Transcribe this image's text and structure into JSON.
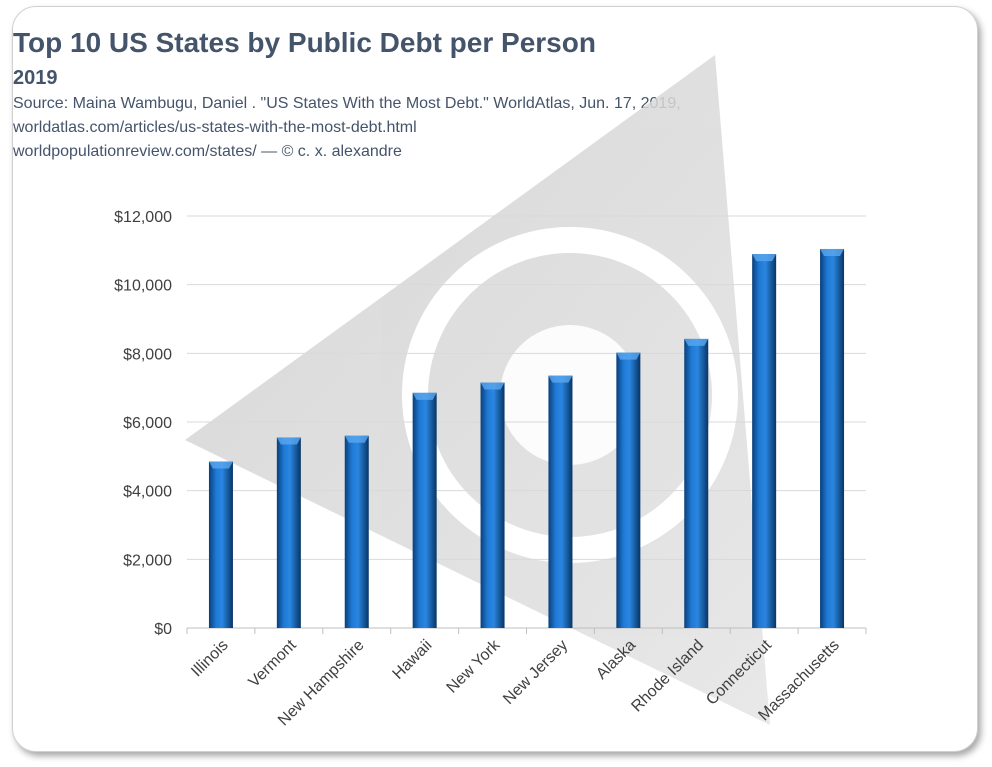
{
  "chart_data": {
    "type": "bar",
    "title": "Top 10 US States by Public Debt per Person",
    "subtitle": "2019",
    "source_lines": [
      "Source: Maina Wambugu, Daniel . \"US States With the Most Debt.\" WorldAtlas, Jun. 17, 2019,",
      "worldatlas.com/articles/us-states-with-the-most-debt.html",
      "worldpopulationreview.com/states/ — © c. x. alexandre"
    ],
    "categories": [
      "Illinois",
      "Vermont",
      "New Hampshire",
      "Hawaii",
      "New York",
      "New Jersey",
      "Alaska",
      "Rhode Island",
      "Connecticut",
      "Massachusetts"
    ],
    "values": [
      4850,
      5550,
      5600,
      6850,
      7150,
      7350,
      8020,
      8420,
      10890,
      11040
    ],
    "ylim": [
      0,
      12000
    ],
    "yticks": [
      "$0",
      "$2,000",
      "$4,000",
      "$6,000",
      "$8,000",
      "$10,000",
      "$12,000"
    ],
    "grid": true,
    "bar_color": "#0b5db0",
    "xlabel": "",
    "ylabel": ""
  }
}
